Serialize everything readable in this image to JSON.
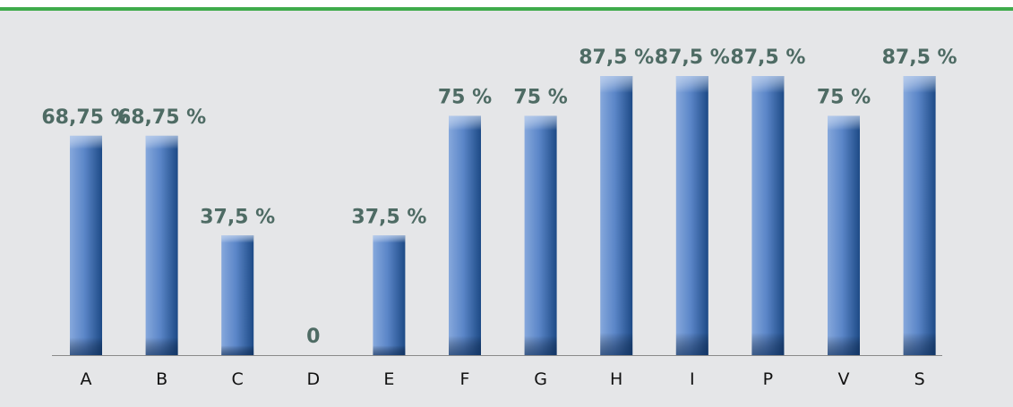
{
  "chart_data": {
    "type": "bar",
    "categories": [
      "A",
      "B",
      "C",
      "D",
      "E",
      "F",
      "G",
      "H",
      "I",
      "P",
      "V",
      "S"
    ],
    "values": [
      68.75,
      68.75,
      37.5,
      0,
      37.5,
      75,
      75,
      87.5,
      87.5,
      87.5,
      75,
      87.5
    ],
    "value_labels": [
      "68,75 %",
      "68,75 %",
      "37,5 %",
      "0",
      "37,5 %",
      "75 %",
      "75 %",
      "87,5 %",
      "87,5 %",
      "87,5 %",
      "75 %",
      "87,5 %"
    ],
    "color": "#4f7fc4"
  }
}
